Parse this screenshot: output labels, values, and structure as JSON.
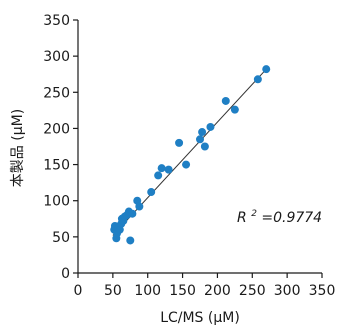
{
  "chart_data": {
    "type": "scatter",
    "xlabel": "LC/MS (μM)",
    "ylabel": "本製品 (μM)",
    "xlim": [
      0,
      350
    ],
    "ylim": [
      0,
      350
    ],
    "xticks": [
      "0",
      "50",
      "100",
      "150",
      "200",
      "250",
      "300",
      "350"
    ],
    "yticks": [
      "0",
      "50",
      "100",
      "150",
      "200",
      "250",
      "300",
      "350"
    ],
    "grid": false,
    "annotation": {
      "r_label": "R",
      "r_sup": "2",
      "r_value": "=0.9774"
    },
    "colors": {
      "points": "#1f7fc4",
      "fit_line": "#333333",
      "axis": "#1a1a1a"
    },
    "fit_line": {
      "x": [
        50,
        272
      ],
      "y": [
        52,
        284
      ]
    },
    "points": [
      {
        "x": 52,
        "y": 60
      },
      {
        "x": 53,
        "y": 65
      },
      {
        "x": 55,
        "y": 48
      },
      {
        "x": 56,
        "y": 55
      },
      {
        "x": 58,
        "y": 62
      },
      {
        "x": 60,
        "y": 60
      },
      {
        "x": 62,
        "y": 68
      },
      {
        "x": 63,
        "y": 75
      },
      {
        "x": 65,
        "y": 72
      },
      {
        "x": 67,
        "y": 78
      },
      {
        "x": 70,
        "y": 80
      },
      {
        "x": 73,
        "y": 85
      },
      {
        "x": 75,
        "y": 45
      },
      {
        "x": 78,
        "y": 82
      },
      {
        "x": 85,
        "y": 100
      },
      {
        "x": 88,
        "y": 92
      },
      {
        "x": 105,
        "y": 112
      },
      {
        "x": 115,
        "y": 135
      },
      {
        "x": 120,
        "y": 145
      },
      {
        "x": 130,
        "y": 143
      },
      {
        "x": 145,
        "y": 180
      },
      {
        "x": 155,
        "y": 150
      },
      {
        "x": 175,
        "y": 185
      },
      {
        "x": 178,
        "y": 195
      },
      {
        "x": 182,
        "y": 175
      },
      {
        "x": 190,
        "y": 202
      },
      {
        "x": 212,
        "y": 238
      },
      {
        "x": 225,
        "y": 226
      },
      {
        "x": 258,
        "y": 268
      },
      {
        "x": 270,
        "y": 282
      }
    ]
  }
}
